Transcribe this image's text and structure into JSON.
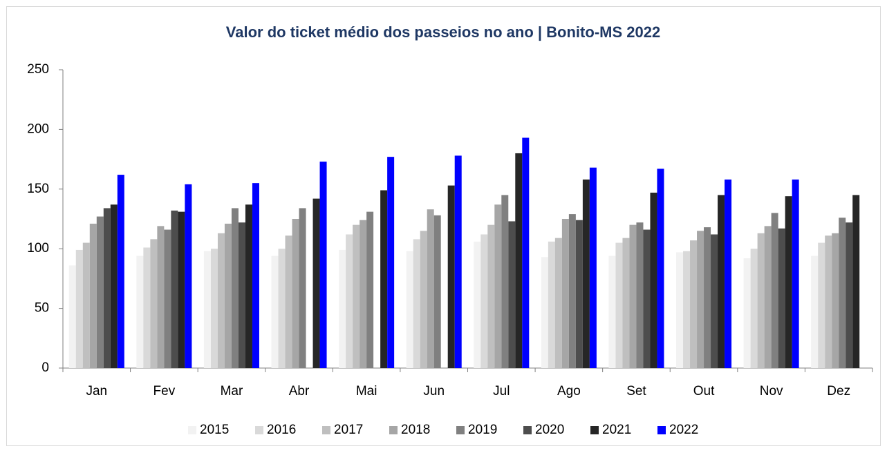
{
  "chart_data": {
    "type": "bar",
    "title": "Valor do ticket médio dos passeios no ano | Bonito-MS 2022",
    "categories": [
      "Jan",
      "Fev",
      "Mar",
      "Abr",
      "Mai",
      "Jun",
      "Jul",
      "Ago",
      "Set",
      "Out",
      "Nov",
      "Dez"
    ],
    "series": [
      {
        "name": "2015",
        "color": "#f2f2f2",
        "values": [
          86,
          94,
          98,
          94,
          99,
          98,
          106,
          93,
          94,
          97,
          92,
          94
        ]
      },
      {
        "name": "2016",
        "color": "#d9d9d9",
        "values": [
          99,
          101,
          100,
          100,
          112,
          108,
          112,
          106,
          105,
          98,
          100,
          105
        ]
      },
      {
        "name": "2017",
        "color": "#bfbfbf",
        "values": [
          105,
          108,
          113,
          111,
          120,
          115,
          120,
          109,
          109,
          107,
          113,
          111
        ]
      },
      {
        "name": "2018",
        "color": "#a6a6a6",
        "values": [
          121,
          119,
          121,
          125,
          124,
          133,
          137,
          125,
          120,
          115,
          119,
          113
        ]
      },
      {
        "name": "2019",
        "color": "#808080",
        "values": [
          127,
          116,
          134,
          134,
          131,
          128,
          145,
          129,
          122,
          118,
          130,
          126
        ]
      },
      {
        "name": "2020",
        "color": "#4d4d4d",
        "values": [
          134,
          132,
          122,
          null,
          null,
          null,
          123,
          124,
          116,
          112,
          117,
          122
        ]
      },
      {
        "name": "2021",
        "color": "#262626",
        "values": [
          137,
          131,
          137,
          142,
          149,
          153,
          180,
          158,
          147,
          145,
          144,
          145
        ]
      },
      {
        "name": "2022",
        "color": "#0000ff",
        "values": [
          162,
          154,
          155,
          173,
          177,
          178,
          193,
          168,
          167,
          158,
          158,
          null
        ]
      }
    ],
    "ylim": [
      0,
      250
    ],
    "yticks": [
      0,
      50,
      100,
      150,
      200,
      250
    ],
    "grid": false,
    "legend": "bottom"
  }
}
